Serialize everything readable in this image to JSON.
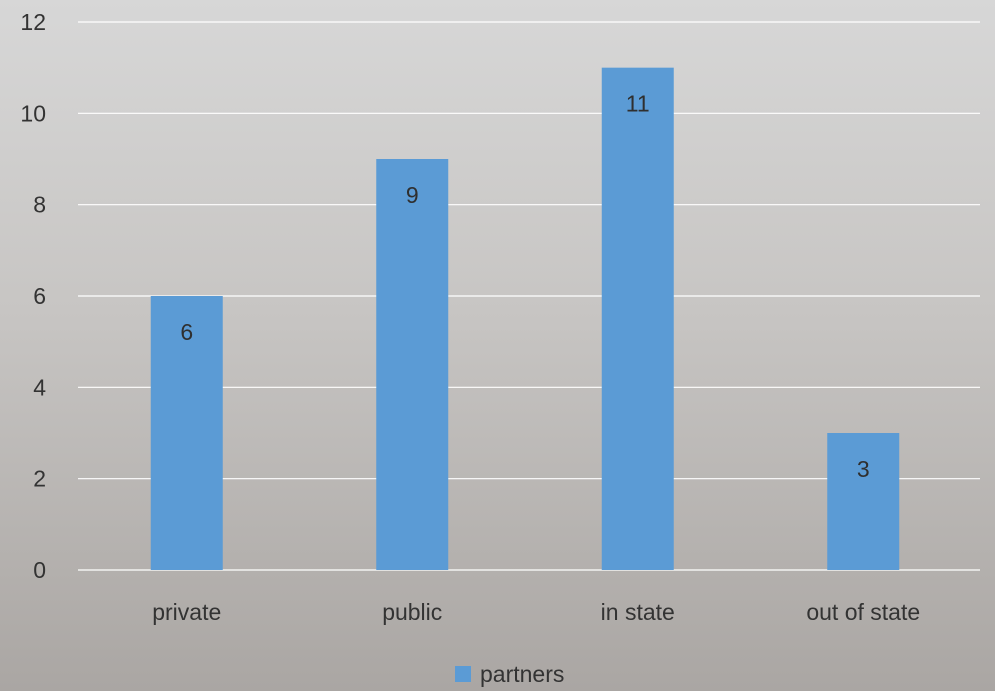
{
  "chart_data": {
    "type": "bar",
    "categories": [
      "private",
      "public",
      "in state",
      "out of state"
    ],
    "series": [
      {
        "name": "partners",
        "values": [
          6,
          9,
          11,
          3
        ],
        "color": "#5b9bd5"
      }
    ],
    "data_labels": [
      "6",
      "9",
      "11",
      "3"
    ],
    "title": "",
    "xlabel": "",
    "ylabel": "",
    "ylim": [
      0,
      12
    ],
    "yticks": [
      0,
      2,
      4,
      6,
      8,
      10,
      12
    ],
    "ytick_labels": [
      "0",
      "2",
      "4",
      "6",
      "8",
      "10",
      "12"
    ],
    "grid": true,
    "gridline_color": "#ffffff",
    "legend_position": "bottom",
    "legend_label": "partners"
  }
}
